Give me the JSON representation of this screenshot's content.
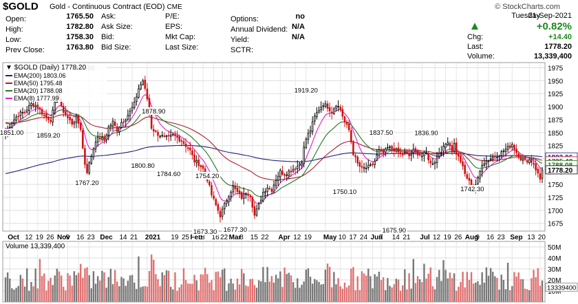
{
  "header": {
    "symbol": "$GOLD",
    "description": "Gold - Continuous Contract (EOD)",
    "exchange": "CME",
    "brand": "© StockCharts.com",
    "weekday": "Tuesday",
    "date": "21-Sep-2021",
    "change_pct": "+0.82%",
    "chg_label": "Chg:",
    "chg": "+14.40",
    "last_label": "Last:",
    "last": "1778.20",
    "volume_label": "Volume:",
    "volume": "13,339,400",
    "up_color": "#1a8a1a",
    "stats_col1": [
      {
        "label": "Open:",
        "value": "1765.50"
      },
      {
        "label": "High:",
        "value": "1782.80"
      },
      {
        "label": "Low:",
        "value": "1758.30"
      },
      {
        "label": "Prev Close:",
        "value": "1763.80"
      }
    ],
    "stats_col2": [
      {
        "label": "Ask:",
        "value": ""
      },
      {
        "label": "Ask Size:",
        "value": ""
      },
      {
        "label": "Bid:",
        "value": ""
      },
      {
        "label": "Bid Size:",
        "value": ""
      }
    ],
    "stats_col3": [
      {
        "label": "P/E:",
        "value": ""
      },
      {
        "label": "EPS:",
        "value": ""
      },
      {
        "label": "Mkt Cap:",
        "value": ""
      },
      {
        "label": "Last Size:",
        "value": ""
      }
    ],
    "stats_col4": [
      {
        "label": "Options:",
        "value": "no"
      },
      {
        "label": "Annual Dividend:",
        "value": "N/A"
      },
      {
        "label": "Yield:",
        "value": "N/A"
      },
      {
        "label": "SCTR:",
        "value": ""
      }
    ]
  },
  "chart_data": {
    "type": "candlestick",
    "title": "$GOLD (Daily) 1778.20",
    "legend": [
      {
        "name": "EMA(200) 1803.06",
        "color": "#1f1f7a"
      },
      {
        "name": "EMA(50) 1795.48",
        "color": "#b01c2e"
      },
      {
        "name": "EMA(20) 1788.08",
        "color": "#1f7a1f"
      },
      {
        "name": "EMA(8) 1777.99",
        "color": "#e020c8"
      }
    ],
    "price_ticks": [
      1675,
      1700,
      1725,
      1750,
      1775,
      1800,
      1825,
      1850,
      1875,
      1900,
      1925,
      1950,
      1975
    ],
    "ylim": [
      1660,
      1985
    ],
    "x_labels": [
      {
        "text": "Oct",
        "b": true,
        "i": 2
      },
      {
        "text": "12",
        "i": 10
      },
      {
        "text": "19",
        "i": 15
      },
      {
        "text": "26",
        "i": 20
      },
      {
        "text": "Nov",
        "b": true,
        "i": 25
      },
      {
        "text": "9",
        "i": 29
      },
      {
        "text": "16",
        "i": 34
      },
      {
        "text": "23",
        "i": 39
      },
      {
        "text": "Dec",
        "b": true,
        "i": 45
      },
      {
        "text": "14",
        "i": 54
      },
      {
        "text": "21",
        "i": 59
      },
      {
        "text": "2021",
        "b": true,
        "i": 66
      },
      {
        "text": "19",
        "i": 78
      },
      {
        "text": "25",
        "i": 83
      },
      {
        "text": "Feb",
        "b": true,
        "i": 87
      },
      {
        "text": "8",
        "i": 92
      },
      {
        "text": "16",
        "i": 97
      },
      {
        "text": "22",
        "i": 101
      },
      {
        "text": "Mar",
        "b": true,
        "i": 105
      },
      {
        "text": "8",
        "i": 110
      },
      {
        "text": "15",
        "i": 115
      },
      {
        "text": "22",
        "i": 120
      },
      {
        "text": "Apr",
        "b": true,
        "i": 128
      },
      {
        "text": "12",
        "i": 135
      },
      {
        "text": "19",
        "i": 140
      },
      {
        "text": "May",
        "b": true,
        "i": 149
      },
      {
        "text": "10",
        "i": 156
      },
      {
        "text": "17",
        "i": 161
      },
      {
        "text": "24",
        "i": 166
      },
      {
        "text": "Jun",
        "b": true,
        "i": 171
      },
      {
        "text": "7",
        "i": 175
      },
      {
        "text": "14",
        "i": 181
      },
      {
        "text": "21",
        "i": 186
      },
      {
        "text": "Jul",
        "b": true,
        "i": 194
      },
      {
        "text": "12",
        "i": 200
      },
      {
        "text": "19",
        "i": 205
      },
      {
        "text": "26",
        "i": 210
      },
      {
        "text": "Aug",
        "b": true,
        "i": 215
      },
      {
        "text": "9",
        "i": 220
      },
      {
        "text": "16",
        "i": 225
      },
      {
        "text": "23",
        "i": 230
      },
      {
        "text": "Sep",
        "b": true,
        "i": 236
      },
      {
        "text": "13",
        "i": 244
      },
      {
        "text": "20",
        "i": 249
      }
    ],
    "annotations": [
      {
        "text": "1962.50",
        "i": 36,
        "v": 1962.5,
        "pos": "above"
      },
      {
        "text": "1851.00",
        "i": -1,
        "v": 1851,
        "pos": "left"
      },
      {
        "text": "1859.20",
        "i": 20,
        "v": 1859.2,
        "pos": "below"
      },
      {
        "text": "1767.20",
        "i": 38,
        "v": 1767.2,
        "pos": "below"
      },
      {
        "text": "1878.90",
        "i": 69,
        "v": 1878.9,
        "pos": "above"
      },
      {
        "text": "1800.80",
        "i": 64,
        "v": 1800.8,
        "pos": "below"
      },
      {
        "text": "1784.60",
        "i": 76,
        "v": 1784.6,
        "pos": "below"
      },
      {
        "text": "1754.20",
        "i": 94,
        "v": 1754.2,
        "pos": "above"
      },
      {
        "text": "1673.30",
        "i": 93,
        "v": 1673.3,
        "pos": "below"
      },
      {
        "text": "1677.30",
        "i": 107,
        "v": 1677.3,
        "pos": "below"
      },
      {
        "text": "1919.20",
        "i": 140,
        "v": 1919.2,
        "pos": "above"
      },
      {
        "text": "1837.50",
        "i": 175,
        "v": 1837.5,
        "pos": "above"
      },
      {
        "text": "1750.10",
        "i": 158,
        "v": 1750.1,
        "pos": "below"
      },
      {
        "text": "1836.90",
        "i": 196,
        "v": 1836.9,
        "pos": "above"
      },
      {
        "text": "1675.90",
        "i": 181,
        "v": 1675.9,
        "pos": "below"
      },
      {
        "text": "1742.30",
        "i": 210,
        "v": 1742.3,
        "pos": "right"
      }
    ],
    "price_tags": [
      {
        "text": "1803.06",
        "v": 1803.06,
        "color": "#1f1f7a",
        "bg": "#fff"
      },
      {
        "text": "1795.48",
        "v": 1795.48,
        "color": "#b01c2e",
        "bg": "#fff"
      },
      {
        "text": "1788.08",
        "v": 1788.08,
        "color": "#1f7a1f",
        "bg": "#fff"
      },
      {
        "text": "1778.20",
        "v": 1778.2,
        "color": "#000",
        "bg": "#fff"
      }
    ],
    "volume": {
      "label": "Volume 13,339,400",
      "ticks": [
        {
          "text": "50M",
          "v": 50
        },
        {
          "text": "40M",
          "v": 40
        },
        {
          "text": "30M",
          "v": 30
        },
        {
          "text": "20M",
          "v": 20
        },
        {
          "text": "10M",
          "v": 10
        }
      ],
      "last_tag": "13339400",
      "ylim": [
        0,
        55
      ]
    },
    "close_anchors": [
      [
        0,
        1851
      ],
      [
        3,
        1870
      ],
      [
        6,
        1885
      ],
      [
        9,
        1890
      ],
      [
        12,
        1905
      ],
      [
        15,
        1900
      ],
      [
        18,
        1882
      ],
      [
        21,
        1875
      ],
      [
        23,
        1905
      ],
      [
        24,
        1930
      ],
      [
        26,
        1898
      ],
      [
        29,
        1878
      ],
      [
        31,
        1868
      ],
      [
        33,
        1878
      ],
      [
        35,
        1858
      ],
      [
        36,
        1820
      ],
      [
        37,
        1790
      ],
      [
        38,
        1775
      ],
      [
        40,
        1805
      ],
      [
        42,
        1835
      ],
      [
        44,
        1840
      ],
      [
        46,
        1835
      ],
      [
        48,
        1860
      ],
      [
        50,
        1870
      ],
      [
        52,
        1855
      ],
      [
        54,
        1870
      ],
      [
        56,
        1878
      ],
      [
        58,
        1890
      ],
      [
        60,
        1905
      ],
      [
        62,
        1935
      ],
      [
        64,
        1950
      ],
      [
        66,
        1915
      ],
      [
        68,
        1860
      ],
      [
        70,
        1850
      ],
      [
        72,
        1845
      ],
      [
        74,
        1840
      ],
      [
        76,
        1840
      ],
      [
        78,
        1845
      ],
      [
        80,
        1840
      ],
      [
        82,
        1835
      ],
      [
        84,
        1825
      ],
      [
        86,
        1815
      ],
      [
        88,
        1795
      ],
      [
        90,
        1790
      ],
      [
        92,
        1780
      ],
      [
        94,
        1760
      ],
      [
        96,
        1730
      ],
      [
        98,
        1710
      ],
      [
        100,
        1690
      ],
      [
        102,
        1710
      ],
      [
        104,
        1730
      ],
      [
        106,
        1745
      ],
      [
        108,
        1735
      ],
      [
        110,
        1725
      ],
      [
        112,
        1735
      ],
      [
        114,
        1730
      ],
      [
        116,
        1690
      ],
      [
        118,
        1710
      ],
      [
        120,
        1735
      ],
      [
        122,
        1745
      ],
      [
        124,
        1740
      ],
      [
        126,
        1760
      ],
      [
        128,
        1775
      ],
      [
        130,
        1770
      ],
      [
        132,
        1775
      ],
      [
        134,
        1780
      ],
      [
        136,
        1785
      ],
      [
        138,
        1795
      ],
      [
        139,
        1820
      ],
      [
        140,
        1838
      ],
      [
        142,
        1855
      ],
      [
        144,
        1880
      ],
      [
        146,
        1895
      ],
      [
        148,
        1905
      ],
      [
        150,
        1900
      ],
      [
        152,
        1890
      ],
      [
        154,
        1905
      ],
      [
        156,
        1895
      ],
      [
        158,
        1870
      ],
      [
        160,
        1855
      ],
      [
        162,
        1810
      ],
      [
        164,
        1790
      ],
      [
        166,
        1780
      ],
      [
        168,
        1782
      ],
      [
        170,
        1785
      ],
      [
        172,
        1795
      ],
      [
        174,
        1815
      ],
      [
        176,
        1810
      ],
      [
        178,
        1820
      ],
      [
        180,
        1820
      ],
      [
        182,
        1815
      ],
      [
        184,
        1808
      ],
      [
        186,
        1810
      ],
      [
        188,
        1805
      ],
      [
        190,
        1815
      ],
      [
        192,
        1810
      ],
      [
        194,
        1805
      ],
      [
        196,
        1810
      ],
      [
        198,
        1790
      ],
      [
        200,
        1795
      ],
      [
        202,
        1812
      ],
      [
        204,
        1820
      ],
      [
        206,
        1835
      ],
      [
        208,
        1815
      ],
      [
        209,
        1828
      ],
      [
        210,
        1810
      ],
      [
        212,
        1795
      ],
      [
        214,
        1770
      ],
      [
        216,
        1755
      ],
      [
        218,
        1740
      ],
      [
        220,
        1760
      ],
      [
        222,
        1790
      ],
      [
        224,
        1795
      ],
      [
        226,
        1800
      ],
      [
        228,
        1805
      ],
      [
        230,
        1808
      ],
      [
        232,
        1815
      ],
      [
        234,
        1820
      ],
      [
        236,
        1828
      ],
      [
        238,
        1812
      ],
      [
        240,
        1800
      ],
      [
        242,
        1795
      ],
      [
        244,
        1798
      ],
      [
        246,
        1790
      ],
      [
        248,
        1770
      ],
      [
        249,
        1760
      ],
      [
        250,
        1778
      ]
    ]
  }
}
